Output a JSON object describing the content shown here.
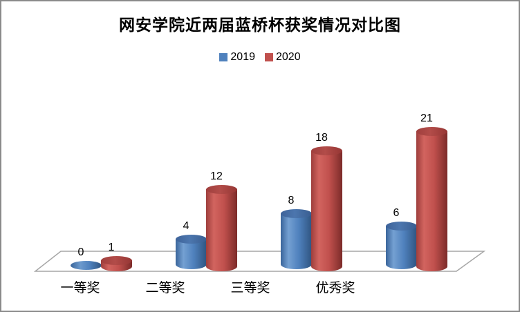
{
  "chart_data": {
    "type": "bar",
    "subtype": "3d-cylinder-clustered",
    "title": "网安学院近两届蓝桥杯获奖情况对比图",
    "categories": [
      "一等奖",
      "二等奖",
      "三等奖",
      "优秀奖"
    ],
    "series": [
      {
        "name": "2019",
        "color": "#4F81BD",
        "values": [
          0,
          4,
          8,
          6
        ]
      },
      {
        "name": "2020",
        "color": "#C0504D",
        "values": [
          1,
          12,
          18,
          21
        ]
      }
    ],
    "data_labels_visible": true,
    "legend_position": "top-center",
    "value_axis_visible": false,
    "grid": "none",
    "ylim": [
      0,
      22
    ],
    "background_color": "#FFFFFF",
    "frame_border_color": "#8A8A8A",
    "floor_line_color": "#A6A6A6"
  }
}
